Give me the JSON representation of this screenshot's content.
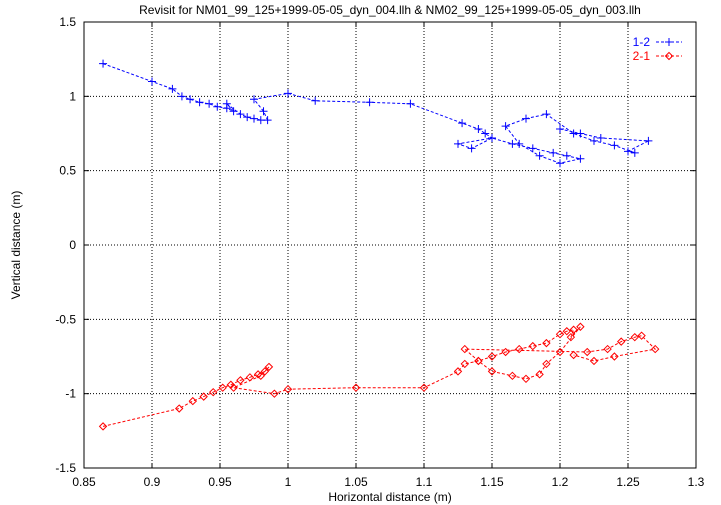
{
  "chart_data": {
    "type": "scatter",
    "title": "Revisit for NM01_99_125+1999-05-05_dyn_004.llh & NM02_99_125+1999-05-05_dyn_003.llh",
    "xlabel": "Horizontal distance (m)",
    "ylabel": "Vertical distance (m)",
    "xlim": [
      0.85,
      1.3
    ],
    "ylim": [
      -1.5,
      1.5
    ],
    "grid": true,
    "legend_position": "top-right",
    "x_ticks": [
      "0.85",
      "0.9",
      "0.95",
      "1",
      "1.05",
      "1.1",
      "1.15",
      "1.2",
      "1.25",
      "1.3"
    ],
    "y_ticks": [
      "-1.5",
      "-1",
      "-0.5",
      "0",
      "0.5",
      "1",
      "1.5"
    ],
    "series": [
      {
        "name": "1-2",
        "color": "#0000ff",
        "marker": "plus",
        "x": [
          0.864,
          0.9,
          0.915,
          0.922,
          0.928,
          0.935,
          0.942,
          0.948,
          0.955,
          0.96,
          0.955,
          0.965,
          0.97,
          0.975,
          0.98,
          0.985,
          0.982,
          0.975,
          1.0,
          1.02,
          1.06,
          1.09,
          1.128,
          1.14,
          1.145,
          1.15,
          1.125,
          1.135,
          1.15,
          1.165,
          1.18,
          1.195,
          1.205,
          1.215,
          1.2,
          1.185,
          1.17,
          1.16,
          1.175,
          1.19,
          1.21,
          1.225,
          1.24,
          1.255,
          1.25,
          1.265,
          1.23,
          1.215,
          1.2
        ],
        "y": [
          1.22,
          1.1,
          1.05,
          1.0,
          0.98,
          0.96,
          0.95,
          0.93,
          0.92,
          0.9,
          0.95,
          0.88,
          0.86,
          0.85,
          0.84,
          0.84,
          0.9,
          0.98,
          1.02,
          0.97,
          0.96,
          0.95,
          0.82,
          0.78,
          0.75,
          0.72,
          0.68,
          0.65,
          0.72,
          0.68,
          0.65,
          0.62,
          0.6,
          0.58,
          0.55,
          0.6,
          0.68,
          0.8,
          0.85,
          0.88,
          0.75,
          0.7,
          0.67,
          0.62,
          0.63,
          0.7,
          0.72,
          0.75,
          0.78
        ]
      },
      {
        "name": "2-1",
        "color": "#ff0000",
        "marker": "diamond",
        "x": [
          0.864,
          0.92,
          0.93,
          0.938,
          0.945,
          0.952,
          0.958,
          0.965,
          0.972,
          0.978,
          0.983,
          0.986,
          0.98,
          0.96,
          0.99,
          1.0,
          1.05,
          1.1,
          1.125,
          1.13,
          1.14,
          1.15,
          1.16,
          1.17,
          1.18,
          1.19,
          1.2,
          1.205,
          1.21,
          1.208,
          1.215,
          1.2,
          1.19,
          1.185,
          1.175,
          1.165,
          1.15,
          1.14,
          1.13,
          1.22,
          1.235,
          1.245,
          1.255,
          1.26,
          1.27,
          1.24,
          1.225,
          1.21
        ],
        "y": [
          -1.22,
          -1.1,
          -1.05,
          -1.02,
          -0.99,
          -0.96,
          -0.94,
          -0.91,
          -0.89,
          -0.87,
          -0.85,
          -0.82,
          -0.88,
          -0.96,
          -1.0,
          -0.97,
          -0.96,
          -0.96,
          -0.85,
          -0.8,
          -0.78,
          -0.75,
          -0.72,
          -0.7,
          -0.68,
          -0.66,
          -0.6,
          -0.58,
          -0.57,
          -0.62,
          -0.55,
          -0.72,
          -0.8,
          -0.87,
          -0.9,
          -0.88,
          -0.85,
          -0.78,
          -0.7,
          -0.72,
          -0.7,
          -0.65,
          -0.62,
          -0.61,
          -0.7,
          -0.75,
          -0.78,
          -0.74
        ]
      }
    ]
  }
}
